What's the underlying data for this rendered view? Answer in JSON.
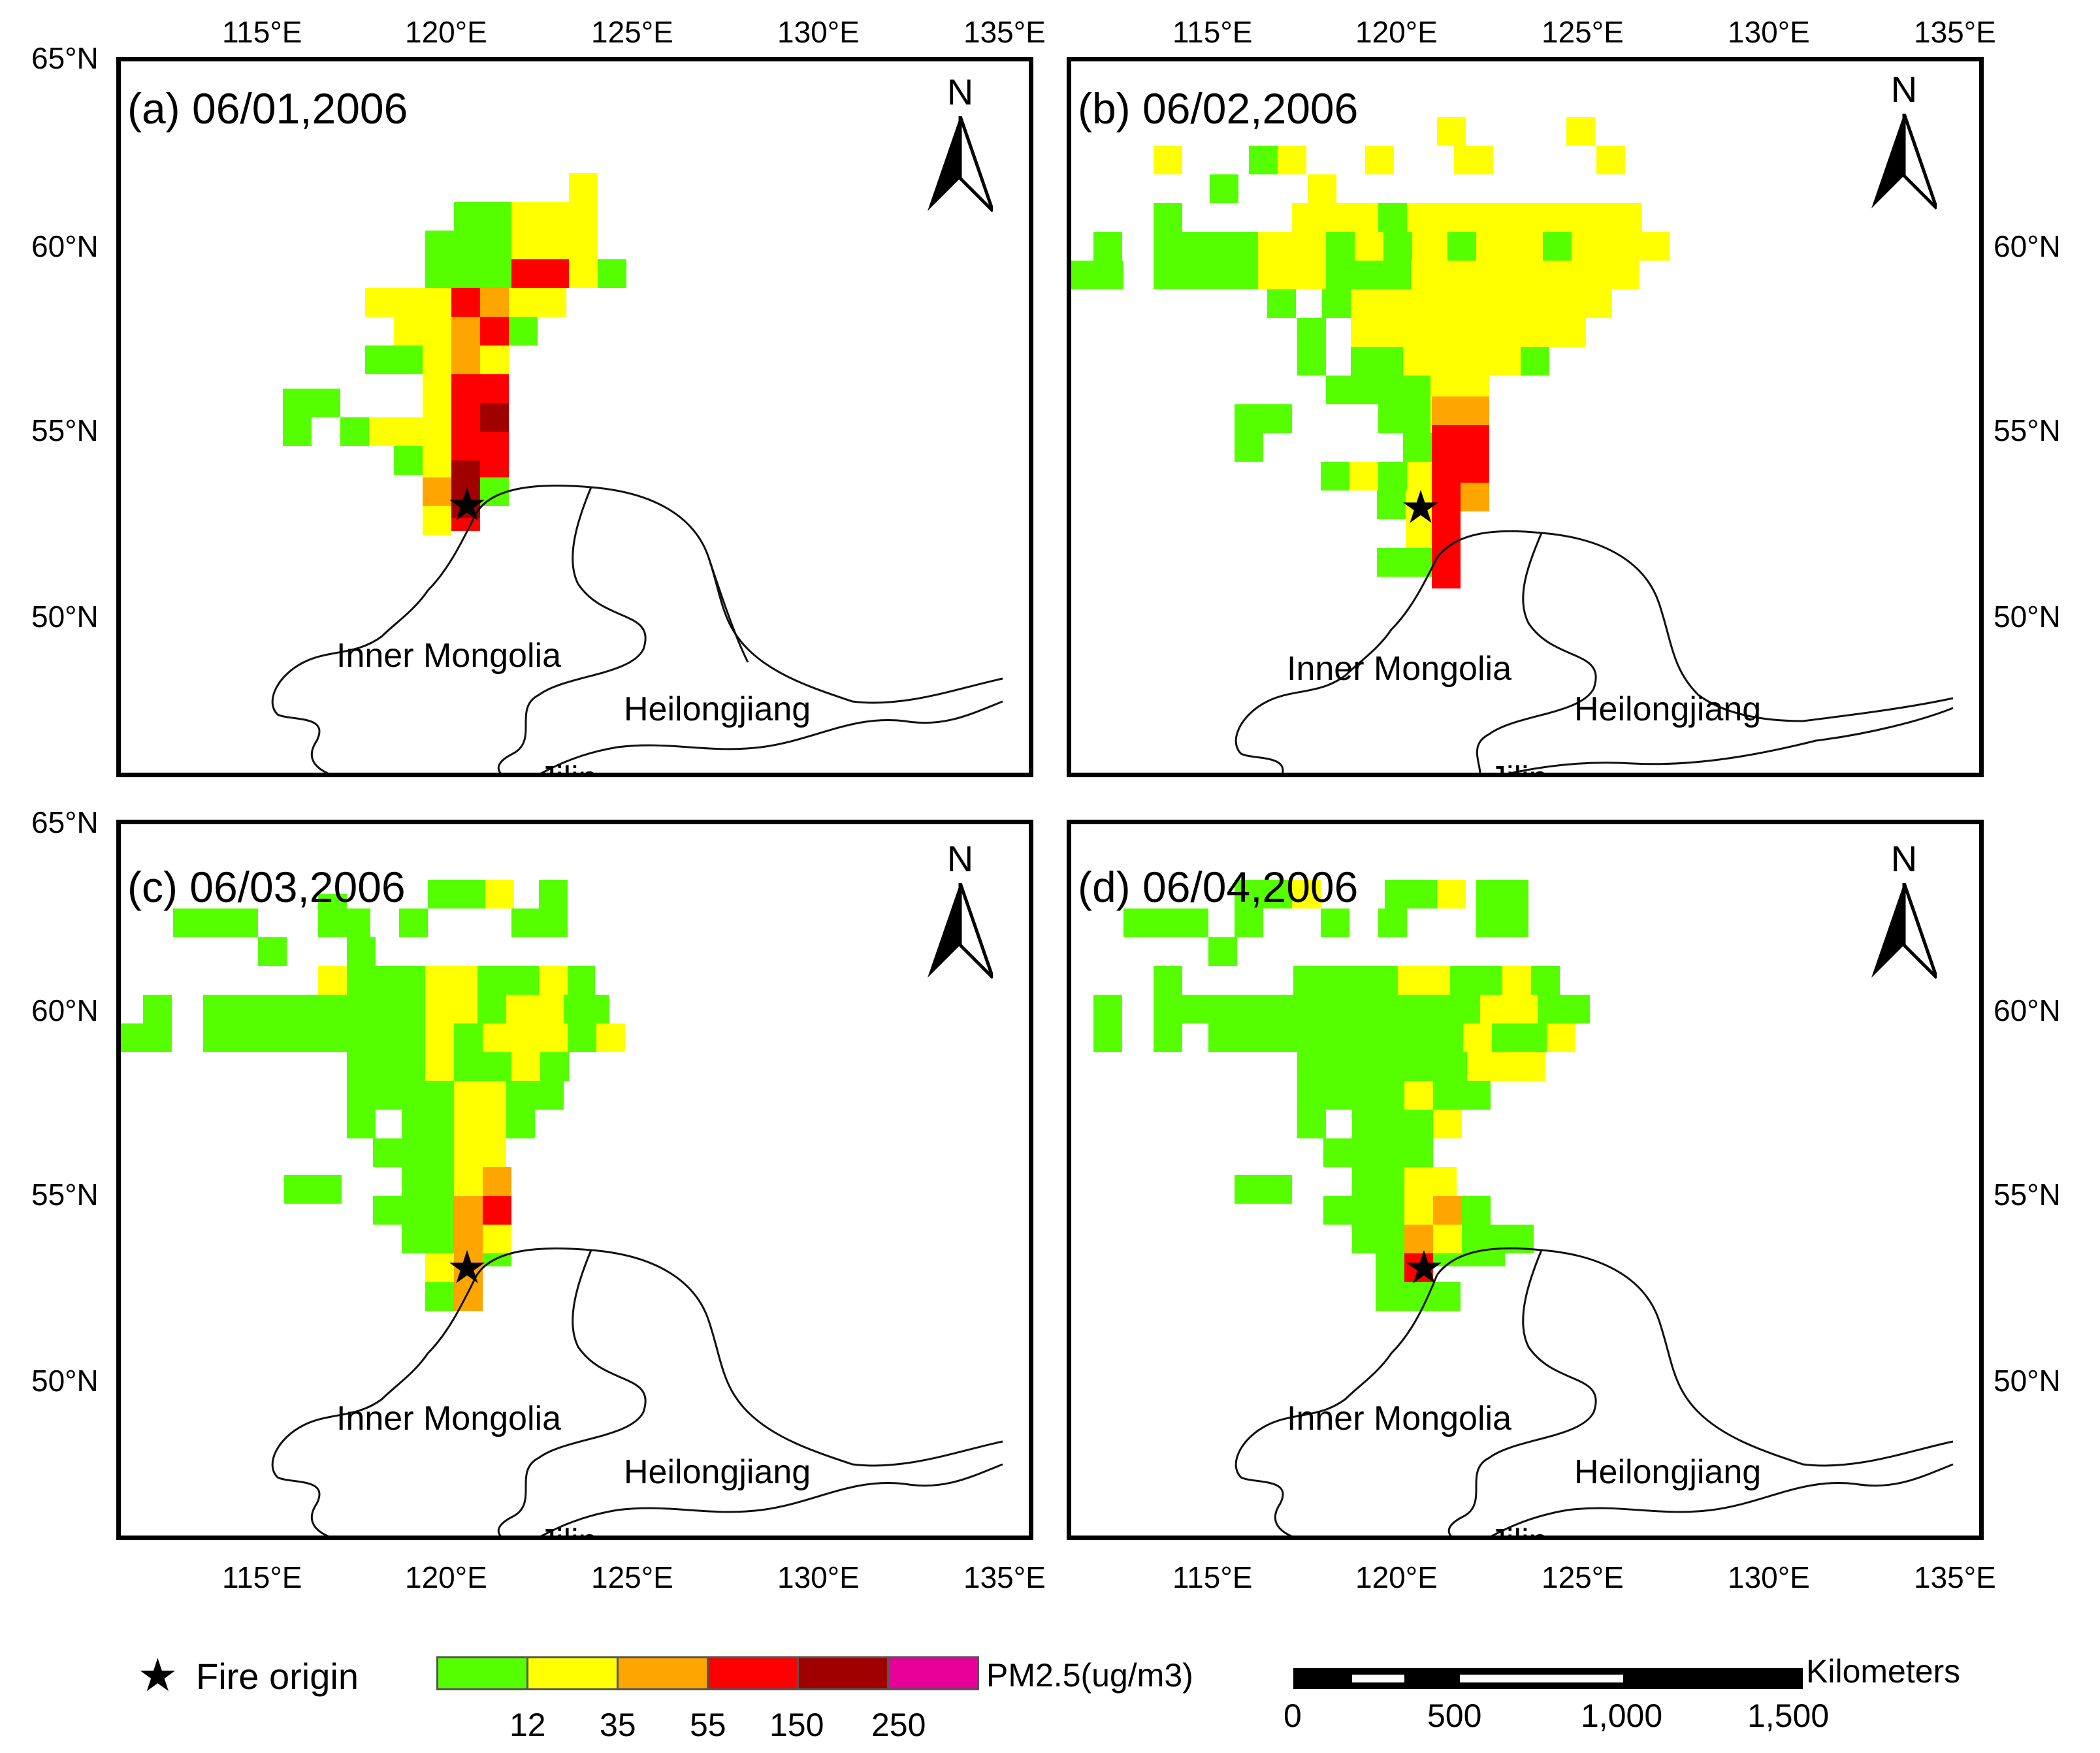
{
  "panels": [
    {
      "title": "(a) 06/01,2006"
    },
    {
      "title": "(b) 06/02,2006"
    },
    {
      "title": "(c) 06/03,2006"
    },
    {
      "title": "(d) 06/04,2006"
    }
  ],
  "map": {
    "north_label": "N",
    "provinces": {
      "inner_mongolia": "Inner Mongolia",
      "heilongjiang": "Heilongjiang",
      "jilin": "Jilin"
    },
    "lon_ticks": [
      "115°E",
      "120°E",
      "125°E",
      "130°E",
      "135°E"
    ],
    "lat_ticks": [
      "65°N",
      "60°N",
      "55°N",
      "50°N"
    ],
    "fire_origin": {
      "lon": 120.5,
      "lat": 53.0
    }
  },
  "legend": {
    "fire_origin_label": "Fire origin",
    "fire_origin_symbol": "★",
    "pm_label": "PM2.5(ug/m3)",
    "pm_colors": [
      "#55ff00",
      "#ffff00",
      "#ffa500",
      "#ff0000",
      "#a00000",
      "#e60099"
    ],
    "pm_breaks": [
      "12",
      "35",
      "55",
      "150",
      "250"
    ],
    "scale_unit": "Kilometers",
    "scale_labels": [
      "0",
      "500",
      "1,000",
      "1,500"
    ]
  },
  "colors": {
    "green": "#55ff00",
    "yellow": "#ffff00",
    "orange": "#ffa500",
    "red": "#ff0000",
    "darkred": "#a00000"
  }
}
